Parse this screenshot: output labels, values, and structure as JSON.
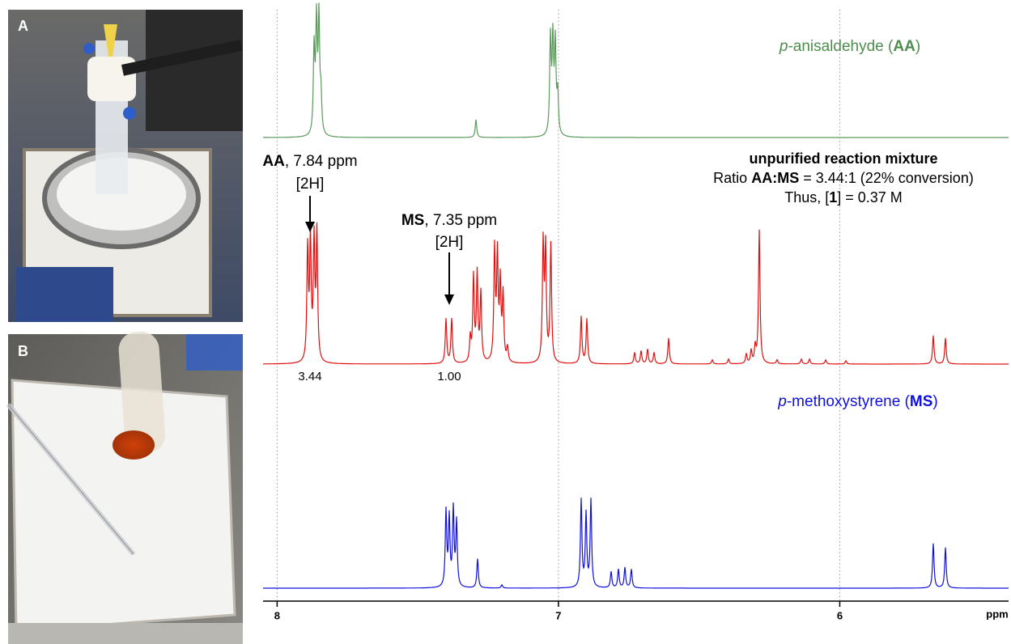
{
  "panels": {
    "a": {
      "label": "A"
    },
    "b": {
      "label": "B"
    }
  },
  "labels": {
    "aa": [
      "p",
      "-anisaldehyde (",
      "AA",
      ")"
    ],
    "ms": [
      "p",
      "-methoxystyrene (",
      "MS",
      ")"
    ],
    "mixture_title": "unpurified reaction mixture",
    "ratio": [
      "Ratio ",
      "AA:MS",
      " = 3.44:1 (22% conversion)"
    ],
    "thus": [
      "Thus, [",
      "1",
      "] = 0.37 M"
    ],
    "aa_peak": [
      "AA",
      ", 7.84 ppm"
    ],
    "aa_h": "[2H]",
    "ms_peak": [
      "MS",
      ", 7.35 ppm"
    ],
    "ms_h": "[2H]",
    "integral_aa": "3.44",
    "integral_ms": "1.00"
  },
  "axis": {
    "xlim": [
      8.05,
      5.4
    ],
    "xticks": [
      8,
      7,
      6
    ],
    "unit": "ppm"
  }
}
